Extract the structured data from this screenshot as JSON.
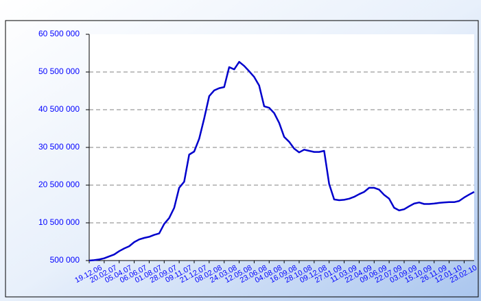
{
  "chart_data": {
    "type": "line",
    "categories": [
      "19.12.06",
      null,
      null,
      "20.02.07",
      null,
      null,
      "05.04.07",
      null,
      null,
      "06.06.07",
      null,
      null,
      "01.08.07",
      null,
      null,
      "28.09.07",
      null,
      null,
      "09.11.07",
      null,
      null,
      "21.12.07",
      null,
      null,
      "08.02.08",
      null,
      null,
      "24.03.08",
      null,
      null,
      "12.05.08",
      null,
      null,
      "23.06.08",
      null,
      null,
      "04.08.08",
      null,
      null,
      "16.09.08",
      null,
      null,
      "28.10.08",
      null,
      null,
      "09.12.08",
      null,
      null,
      "27.01.09",
      null,
      null,
      "11.03.09",
      null,
      null,
      "22.04.09",
      null,
      null,
      "09.06.09",
      null,
      null,
      "22.07.09",
      null,
      null,
      "03.09.09",
      null,
      null,
      "15.10.09",
      null,
      null,
      "26.11.09",
      null,
      null,
      "12.01.10",
      null,
      null,
      "23.02.10",
      null,
      null
    ],
    "series": [
      {
        "color": "#0000cc",
        "values": [
          500000,
          600000,
          800000,
          1100000,
          1600000,
          2100000,
          3000000,
          3700000,
          4300000,
          5400000,
          6100000,
          6500000,
          6800000,
          7300000,
          7700000,
          10200000,
          11800000,
          14500000,
          19800000,
          21400000,
          28600000,
          29400000,
          32800000,
          38200000,
          44100000,
          45600000,
          46200000,
          46500000,
          51800000,
          51200000,
          53200000,
          52100000,
          50700000,
          49200000,
          46900000,
          41400000,
          41000000,
          39600000,
          37000000,
          33300000,
          32000000,
          30200000,
          29200000,
          29900000,
          29600000,
          29300000,
          29300000,
          29600000,
          20800000,
          16700000,
          16500000,
          16600000,
          16900000,
          17400000,
          18100000,
          18700000,
          19800000,
          19800000,
          19300000,
          17900000,
          16900000,
          14500000,
          13800000,
          14100000,
          14900000,
          15600000,
          15900000,
          15500000,
          15500000,
          15600000,
          15800000,
          15900000,
          16000000,
          16000000,
          16300000,
          17200000,
          18000000,
          18700000
        ]
      }
    ],
    "ylim": [
      500000,
      60500000
    ],
    "yticks": [
      {
        "value": 500000,
        "label": "500 000"
      },
      {
        "value": 10500000,
        "label": "10 500 000"
      },
      {
        "value": 20500000,
        "label": "20 500 000"
      },
      {
        "value": 30500000,
        "label": "30 500 000"
      },
      {
        "value": 40500000,
        "label": "40 500 000"
      },
      {
        "value": 50500000,
        "label": "50 500 000"
      },
      {
        "value": 60500000,
        "label": "60 500 000"
      }
    ],
    "grid": true
  }
}
